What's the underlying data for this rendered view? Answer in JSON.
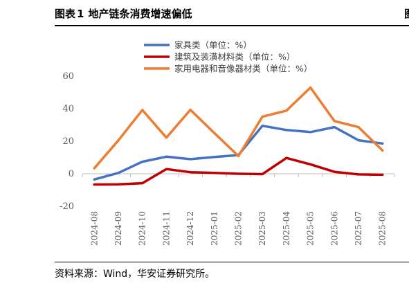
{
  "figure": {
    "label": "图表",
    "number": "1",
    "title": "地产链条消费增速偏低",
    "right_mark": "图",
    "source": "资料来源：Wind，华安证券研究所。"
  },
  "chart_data": {
    "type": "line",
    "title": "",
    "xlabel": "",
    "ylabel": "",
    "ylim": [
      -20,
      60
    ],
    "yticks": [
      -20,
      0,
      20,
      40,
      60
    ],
    "legend_position": "top",
    "grid": false,
    "x": [
      "2024-08",
      "2024-09",
      "2024-10",
      "2024-11",
      "2024-12",
      "2025-01",
      "2025-02",
      "2025-03",
      "2025-04",
      "2025-05",
      "2025-06",
      "2025-07",
      "2025-08"
    ],
    "series": [
      {
        "name": "家具类（单位：%）",
        "color": "#4472C4",
        "values": [
          -3.5,
          0.5,
          7.4,
          10.5,
          9.0,
          10.3,
          11.5,
          29.5,
          26.9,
          25.6,
          28.7,
          20.6,
          18.6
        ]
      },
      {
        "name": "建筑及装潢材料类（单位：%）",
        "color": "#C00000",
        "values": [
          -6.6,
          -6.5,
          -5.8,
          2.9,
          1.0,
          0.5,
          0.0,
          -0.2,
          9.7,
          5.8,
          1.2,
          -0.4,
          -0.6
        ]
      },
      {
        "name": "家用电器和音像器材类（单位：%）",
        "color": "#ED7D31",
        "values": [
          3.4,
          20.5,
          39.2,
          22.2,
          39.3,
          25.0,
          10.9,
          35.1,
          38.8,
          53.0,
          32.4,
          28.7,
          14.3
        ]
      }
    ]
  }
}
